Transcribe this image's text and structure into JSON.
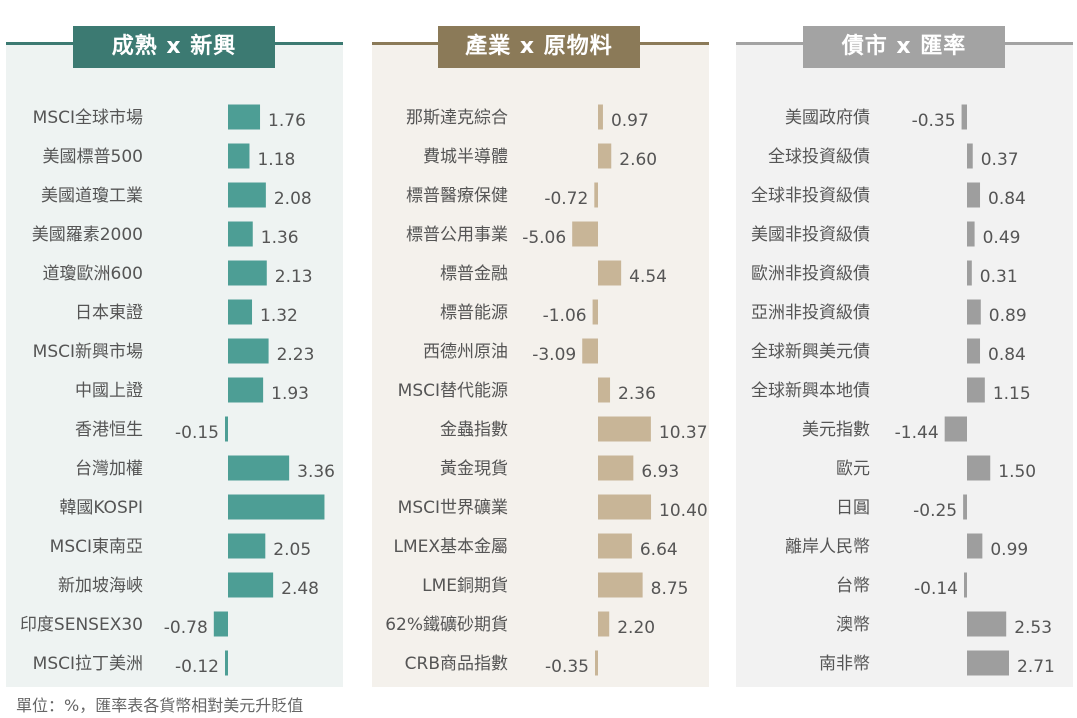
{
  "chart_data": [
    {
      "type": "bar",
      "orientation": "horizontal",
      "title": "成熟 x 新興",
      "color": "#4d9e95",
      "header_color": "#3c7a72",
      "categories": [
        "MSCI全球市場",
        "美國標普500",
        "美國道瓊工業",
        "美國羅素2000",
        "道瓊歐洲600",
        "日本東證",
        "MSCI新興市場",
        "中國上證",
        "香港恒生",
        "台灣加權",
        "韓國KOSPI",
        "MSCI東南亞",
        "新加坡海峽",
        "印度SENSEX30",
        "MSCI拉丁美洲"
      ],
      "values": [
        1.76,
        1.18,
        2.08,
        1.36,
        2.13,
        1.32,
        2.23,
        1.93,
        -0.15,
        3.36,
        null,
        2.05,
        2.48,
        -0.78,
        -0.12
      ],
      "labels": [
        "1.76",
        "1.18",
        "2.08",
        "1.36",
        "2.13",
        "1.32",
        "2.23",
        "1.93",
        "-0.15",
        "3.36",
        "",
        "2.05",
        "2.48",
        "-0.78",
        "-0.12"
      ],
      "bar_only_values": [
        null,
        null,
        null,
        null,
        null,
        null,
        null,
        null,
        null,
        null,
        5.3,
        null,
        null,
        null,
        null
      ],
      "xlim": [
        -0.9,
        5.5
      ]
    },
    {
      "type": "bar",
      "orientation": "horizontal",
      "title": "產業 x 原物料",
      "color": "#c8b597",
      "header_color": "#8b7a58",
      "categories": [
        "那斯達克綜合",
        "費城半導體",
        "標普醫療保健",
        "標普公用事業",
        "標普金融",
        "標普能源",
        "西德州原油",
        "MSCI替代能源",
        "金蟲指數",
        "黃金現貨",
        "MSCI世界礦業",
        "LMEX基本金屬",
        "LME銅期貨",
        "62%鐵礦砂期貨",
        "CRB商品指數"
      ],
      "values": [
        0.97,
        2.6,
        -0.72,
        -5.06,
        4.54,
        -1.06,
        -3.09,
        2.36,
        10.37,
        6.93,
        10.4,
        6.64,
        8.75,
        2.2,
        -0.35
      ],
      "labels": [
        "0.97",
        "2.60",
        "-0.72",
        "-5.06",
        "4.54",
        "-1.06",
        "-3.09",
        "2.36",
        "10.37",
        "6.93",
        "10.40",
        "6.64",
        "8.75",
        "2.20",
        "-0.35"
      ],
      "xlim": [
        -6,
        11
      ]
    },
    {
      "type": "bar",
      "orientation": "horizontal",
      "title": "債市 x 匯率",
      "color": "#9e9e9e",
      "header_color": "#a3a3a3",
      "categories": [
        "美國政府債",
        "全球投資級債",
        "全球非投資級債",
        "美國非投資級債",
        "歐洲非投資級債",
        "亞洲非投資級債",
        "全球新興美元債",
        "全球新興本地債",
        "美元指數",
        "歐元",
        "日圓",
        "離岸人民幣",
        "台幣",
        "澳幣",
        "南非幣"
      ],
      "values": [
        -0.35,
        0.37,
        0.84,
        0.49,
        0.31,
        0.89,
        0.84,
        1.15,
        -1.44,
        1.5,
        -0.25,
        0.99,
        -0.14,
        2.53,
        2.71
      ],
      "labels": [
        "-0.35",
        "0.37",
        "0.84",
        "0.49",
        "0.31",
        "0.89",
        "0.84",
        "1.15",
        "-1.44",
        "1.50",
        "-0.25",
        "0.99",
        "-0.14",
        "2.53",
        "2.71"
      ],
      "xlim": [
        -1.6,
        3
      ]
    }
  ],
  "footnote": "單位：%，匯率表各貨幣相對美元升貶值"
}
